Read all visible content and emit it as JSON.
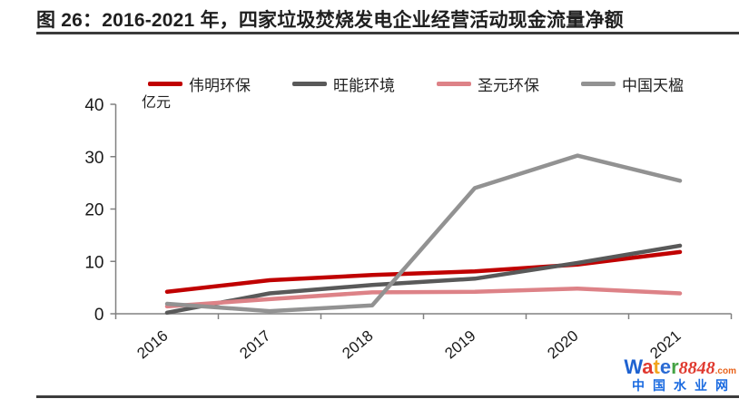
{
  "figure": {
    "title": "图 26：2016-2021 年，四家垃圾焚烧发电企业经营活动现金流量净额"
  },
  "chart_data": {
    "type": "line",
    "title": "图 26：2016-2021 年，四家垃圾焚烧发电企业经营活动现金流量净额",
    "unit_label": "亿元",
    "categories": [
      "2016",
      "2017",
      "2018",
      "2019",
      "2020",
      "2021"
    ],
    "series": [
      {
        "name": "伟明环保",
        "color": "#C00000",
        "values": [
          4.2,
          6.4,
          7.4,
          8.1,
          9.4,
          11.8
        ]
      },
      {
        "name": "旺能环境",
        "color": "#595959",
        "values": [
          0.2,
          3.9,
          5.5,
          6.7,
          9.7,
          13.0
        ]
      },
      {
        "name": "圣元环保",
        "color": "#DD8287",
        "values": [
          1.4,
          2.8,
          4.1,
          4.2,
          4.8,
          3.9
        ]
      },
      {
        "name": "中国天楹",
        "color": "#929292",
        "values": [
          1.9,
          0.5,
          1.6,
          24.0,
          30.2,
          25.4
        ]
      }
    ],
    "ylim": [
      0,
      40
    ],
    "yticks": [
      0,
      10,
      20,
      30,
      40
    ],
    "xlabel": "",
    "ylabel": "亿元",
    "legend_position": "top",
    "grid": false,
    "axis_color": "#808080"
  },
  "watermark": {
    "brand_letters": [
      {
        "ch": "W",
        "color": "#1E62D0"
      },
      {
        "ch": "a",
        "color": "#E03A30"
      },
      {
        "ch": "t",
        "color": "#F2A51D"
      },
      {
        "ch": "e",
        "color": "#2A6BD4"
      },
      {
        "ch": "r",
        "color": "#45A345"
      }
    ],
    "brand_suffix": "8848",
    "brand_suffix_color": "#E03A30",
    "brand_tld": ".com",
    "brand_tld_color": "#E8621A",
    "subtitle": "中国水业网",
    "subtitle_color": "#1A6AE0"
  }
}
